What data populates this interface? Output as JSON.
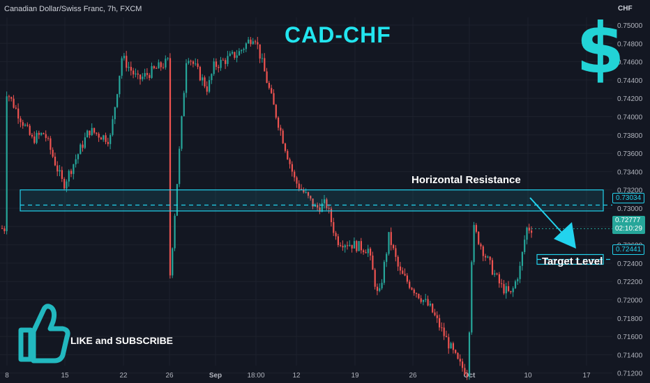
{
  "header": {
    "symbol_text": "Canadian Dollar/Swiss Franc, 7h, FXCM",
    "currency": "CHF"
  },
  "overlay": {
    "title": "CAD-CHF",
    "dollar_glyph": "$",
    "resistance_label": "Horizontal Resistance",
    "target_label": "Target Level",
    "like_text": "LIKE and SUBSCRIBE"
  },
  "price_tags": {
    "resistance": "0.73034",
    "current_price": "0.72777",
    "countdown": "02:10:29",
    "target": "0.72441"
  },
  "colors": {
    "background": "#131722",
    "up": "#26a69a",
    "down": "#ef5350",
    "accent": "#22d3ee",
    "grid": "#1e222d"
  },
  "chart_data": {
    "type": "candlestick",
    "y_axis_ticks": [
      "0.75000",
      "0.74800",
      "0.74600",
      "0.74400",
      "0.74200",
      "0.74000",
      "0.73800",
      "0.73600",
      "0.73400",
      "0.73200",
      "0.73000",
      "0.72800",
      "0.72600",
      "0.72400",
      "0.72200",
      "0.72000",
      "0.71800",
      "0.71600",
      "0.71400",
      "0.71200"
    ],
    "x_axis_ticks": [
      "8",
      "15",
      "22",
      "26",
      "Sep",
      "18:00",
      "12",
      "19",
      "26",
      "Oct",
      "10",
      "17"
    ],
    "ylim": [
      0.7115,
      0.7503
    ],
    "grid": true,
    "resistance_zone": [
      0.7297,
      0.732
    ],
    "resistance_level": 0.73034,
    "target_level": 0.72441,
    "current_price": 0.72777,
    "trend_points": [
      {
        "x": "8",
        "y": 0.743
      },
      {
        "x": "15",
        "y": 0.7325
      },
      {
        "x": "22",
        "y": 0.7465
      },
      {
        "x": "26",
        "y": 0.746
      },
      {
        "x": "Sep",
        "y": 0.7455
      },
      {
        "x": "18:00",
        "y": 0.749
      },
      {
        "x": "12",
        "y": 0.733
      },
      {
        "x": "19",
        "y": 0.726
      },
      {
        "x": "26",
        "y": 0.7195
      },
      {
        "x": "Oct",
        "y": 0.712
      },
      {
        "x": "10",
        "y": 0.7278
      }
    ]
  }
}
